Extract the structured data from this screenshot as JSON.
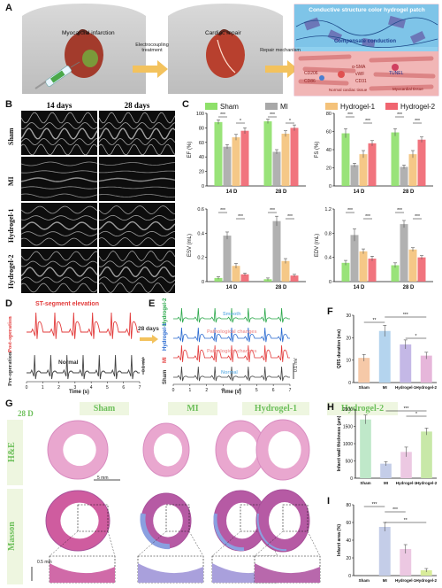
{
  "panels": {
    "A": "A",
    "B": "B",
    "C": "C",
    "D": "D",
    "E": "E",
    "F": "F",
    "G": "G",
    "H": "H",
    "I": "I"
  },
  "panel_a": {
    "heart1_label": "Myocardial infarction",
    "arrow1_label": "Electrocoupling treatment",
    "heart2_label": "Cardiac repair",
    "arrow2_label": "Repair mechanism",
    "mech_title": "Conductive structure color hydrogel patch",
    "mech_center": "Compensate conduction",
    "mech_labels": [
      "CD206",
      "CD86",
      "α-SMA",
      "vWF",
      "CD31",
      "TUNEL",
      "Myocardial tissue",
      "Normal cardiac tissue"
    ]
  },
  "panel_b": {
    "col_headers": [
      "14 days",
      "28 days"
    ],
    "row_labels": [
      "Sham",
      "MI",
      "Hydrogel-1",
      "Hydrogel-2"
    ]
  },
  "panel_c": {
    "legend": [
      "Sham",
      "MI",
      "Hydrogel-1",
      "Hydrogel-2"
    ],
    "colors": {
      "Sham": "#8ee06a",
      "MI": "#a8a8a8",
      "Hydrogel-1": "#f4c27a",
      "Hydrogel-2": "#f06570"
    },
    "sig": "***",
    "sig2": "*",
    "sig3": "**"
  },
  "panel_d": {
    "title": "ST-segment elevation",
    "row1": "Post-operation",
    "row2": "Pre-operation",
    "normal": "Normal",
    "xlabel": "Time (s)",
    "xticks": [
      "0",
      "1",
      "2",
      "3",
      "4",
      "5",
      "6",
      "7"
    ],
    "scale": "0.1 mV",
    "arrow": "28 days"
  },
  "panel_e": {
    "rows": [
      "Hydrogel-2",
      "Hydrogel-1",
      "MI",
      "Sham"
    ],
    "notes": [
      "Smooth",
      "Pathological changes",
      "Pathological changes",
      "Normal"
    ],
    "xlabel": "Time (s)",
    "xticks": [
      "0",
      "1",
      "2",
      "3",
      "4",
      "5",
      "6",
      "7"
    ],
    "scale": "0.1 mV"
  },
  "panel_g": {
    "day": "28 D",
    "col_headers": [
      "Sham",
      "MI",
      "Hydrogel-1",
      "Hydrogel-2"
    ],
    "row_labels": [
      "H&E",
      "Masson"
    ],
    "scale1": "5 mm",
    "scale2": "0.5 mm"
  },
  "chart_data": [
    {
      "type": "bar",
      "title": "",
      "ylabel": "EF (%)",
      "categories": [
        "14 D",
        "28 D"
      ],
      "ylim": [
        0,
        100
      ],
      "yticks": [
        0,
        20,
        40,
        60,
        80,
        100
      ],
      "series": [
        {
          "name": "Sham",
          "values": [
            88,
            89
          ],
          "err": [
            3,
            3
          ]
        },
        {
          "name": "MI",
          "values": [
            54,
            47
          ],
          "err": [
            3,
            3
          ]
        },
        {
          "name": "Hydrogel-1",
          "values": [
            67,
            72
          ],
          "err": [
            4,
            4
          ]
        },
        {
          "name": "Hydrogel-2",
          "values": [
            76,
            80
          ],
          "err": [
            4,
            4
          ]
        }
      ]
    },
    {
      "type": "bar",
      "title": "",
      "ylabel": "FS (%)",
      "categories": [
        "14 D",
        "28 D"
      ],
      "ylim": [
        0,
        80
      ],
      "yticks": [
        0,
        20,
        40,
        60,
        80
      ],
      "series": [
        {
          "name": "Sham",
          "values": [
            58,
            59
          ],
          "err": [
            5,
            4
          ]
        },
        {
          "name": "MI",
          "values": [
            23,
            21
          ],
          "err": [
            2,
            2
          ]
        },
        {
          "name": "Hydrogel-1",
          "values": [
            35,
            35
          ],
          "err": [
            4,
            4
          ]
        },
        {
          "name": "Hydrogel-2",
          "values": [
            47,
            51
          ],
          "err": [
            3,
            3
          ]
        }
      ]
    },
    {
      "type": "bar",
      "title": "",
      "ylabel": "ESV (mL)",
      "categories": [
        "14 D",
        "28 D"
      ],
      "ylim": [
        0,
        0.6
      ],
      "yticks": [
        0.0,
        0.2,
        0.4,
        0.6
      ],
      "series": [
        {
          "name": "Sham",
          "values": [
            0.03,
            0.02
          ],
          "err": [
            0.01,
            0.01
          ]
        },
        {
          "name": "MI",
          "values": [
            0.38,
            0.5
          ],
          "err": [
            0.03,
            0.04
          ]
        },
        {
          "name": "Hydrogel-1",
          "values": [
            0.13,
            0.17
          ],
          "err": [
            0.02,
            0.02
          ]
        },
        {
          "name": "Hydrogel-2",
          "values": [
            0.06,
            0.05
          ],
          "err": [
            0.01,
            0.01
          ]
        }
      ]
    },
    {
      "type": "bar",
      "title": "",
      "ylabel": "EDV (mL)",
      "categories": [
        "14 D",
        "28 D"
      ],
      "ylim": [
        0,
        1.2
      ],
      "yticks": [
        0.0,
        0.4,
        0.8,
        1.2
      ],
      "series": [
        {
          "name": "Sham",
          "values": [
            0.31,
            0.27
          ],
          "err": [
            0.04,
            0.04
          ]
        },
        {
          "name": "MI",
          "values": [
            0.77,
            0.95
          ],
          "err": [
            0.1,
            0.06
          ]
        },
        {
          "name": "Hydrogel-1",
          "values": [
            0.5,
            0.53
          ],
          "err": [
            0.04,
            0.03
          ]
        },
        {
          "name": "Hydrogel-2",
          "values": [
            0.38,
            0.4
          ],
          "err": [
            0.04,
            0.03
          ]
        }
      ]
    },
    {
      "type": "bar",
      "title": "",
      "ylabel": "QRS duration (ms)",
      "categories": [
        "Sham",
        "MI",
        "Hydrogel-1",
        "Hydrogel-2"
      ],
      "ylim": [
        0,
        30
      ],
      "yticks": [
        0,
        10,
        20,
        30
      ],
      "values": [
        11,
        23,
        17,
        12
      ],
      "err": [
        1.5,
        2.5,
        2,
        1.5
      ],
      "colors": [
        "#f6c9a8",
        "#b4d4ee",
        "#c4b8e6",
        "#e6b6da"
      ]
    },
    {
      "type": "bar",
      "title": "",
      "ylabel": "Infarct wall thickness (μm)",
      "categories": [
        "Sham",
        "MI",
        "Hydrogel-1",
        "Hydrogel-2"
      ],
      "ylim": [
        0,
        2000
      ],
      "yticks": [
        0,
        500,
        1000,
        1500,
        2000
      ],
      "values": [
        1700,
        420,
        760,
        1350
      ],
      "err": [
        130,
        60,
        140,
        100
      ],
      "colors": [
        "#bfe8c9",
        "#c4cde8",
        "#ecc8e2",
        "#c8e8a8"
      ]
    },
    {
      "type": "bar",
      "title": "",
      "ylabel": "Infarct area (%)",
      "categories": [
        "Sham",
        "MI",
        "Hydrogel-1",
        "Hydrogel-2"
      ],
      "ylim": [
        0,
        80
      ],
      "yticks": [
        0,
        20,
        40,
        60,
        80
      ],
      "values": [
        0,
        55,
        30,
        6
      ],
      "err": [
        0,
        5,
        5,
        2
      ],
      "colors": [
        "#e8d0b8",
        "#c4cde8",
        "#ecc8e2",
        "#d8ec9a"
      ]
    }
  ]
}
